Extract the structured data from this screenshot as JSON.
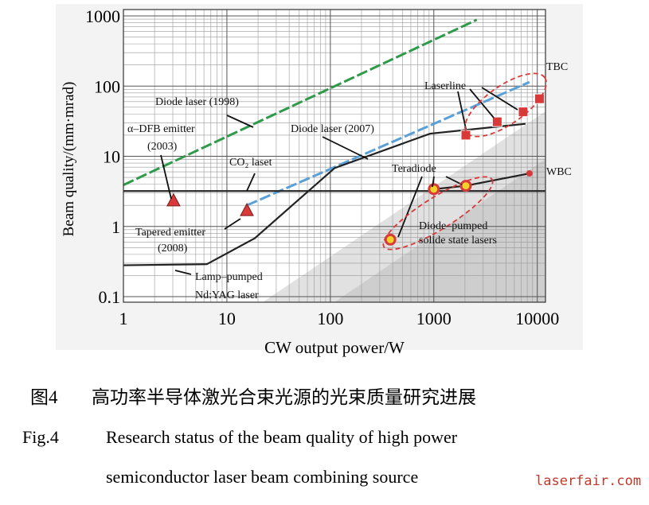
{
  "chart_data": {
    "type": "line",
    "xlabel": "CW output power/W",
    "ylabel": "Beam quality/(mm·mrad)",
    "xscale": "log",
    "yscale": "log",
    "xlim": [
      1,
      12000
    ],
    "ylim": [
      0.1,
      1000
    ],
    "xticks": [
      1,
      10,
      100,
      1000,
      10000
    ],
    "yticks": [
      0.1,
      1,
      10,
      100,
      1000
    ],
    "grid": true,
    "series": [
      {
        "style": "dashed",
        "color": "#2e9a4a",
        "x": [
          1,
          2600
        ],
        "y": [
          3.9,
          880
        ]
      },
      {
        "style": "dashed",
        "color": "#5aa0d8",
        "x": [
          15.6,
          8400
        ],
        "y": [
          2.0,
          114
        ]
      },
      {
        "style": "solid",
        "color": "#222222",
        "x": [
          1,
          12000
        ],
        "y": [
          3.2,
          3.2
        ]
      },
      {
        "style": "solid",
        "color": "#222222",
        "x": [
          1,
          6.4,
          18.6,
          110,
          920,
          7700
        ],
        "y": [
          0.28,
          0.29,
          0.68,
          6.8,
          21,
          29
        ]
      },
      {
        "style": "solid",
        "color": "#222222",
        "x": [
          1000,
          2040,
          8400
        ],
        "y": [
          3.4,
          3.8,
          5.7
        ]
      },
      {
        "style": "square",
        "color": "#d83a3a",
        "x": [
          2040,
          4100,
          7300,
          10500
        ],
        "y": [
          20,
          31,
          43,
          66
        ]
      },
      {
        "style": "circle",
        "color": "#f2d22a",
        "x": [
          380,
          1000,
          2040
        ],
        "y": [
          0.65,
          3.4,
          3.8
        ]
      },
      {
        "style": "dot",
        "color": "#d83a3a",
        "x": [
          8400
        ],
        "y": [
          5.7
        ]
      },
      {
        "style": "triangle",
        "color": "#d83a3a",
        "x": [
          3.05,
          15.6
        ],
        "y": [
          2.3,
          1.67
        ]
      }
    ],
    "annotations": [
      "Diode laser (1998)",
      "Diode laser (2007)",
      "CO₂ laset",
      "α–DFB emitter",
      "(2003)",
      "Tapered emitter",
      "(2008)",
      "Lamp–pumped",
      "Nd:YAG laser",
      "Laserline",
      "Teradiode",
      "Diode–pumped",
      "solide state lasers",
      "TBC",
      "WBC"
    ]
  },
  "caption": {
    "cn_label": "图4",
    "cn_text": "高功率半导体激光合束光源的光束质量研究进展",
    "en_label": "Fig.4",
    "en_line1": "Research status of the beam quality of high power",
    "en_line2": "semiconductor laser beam combining source"
  },
  "watermark": "laserfair.com"
}
